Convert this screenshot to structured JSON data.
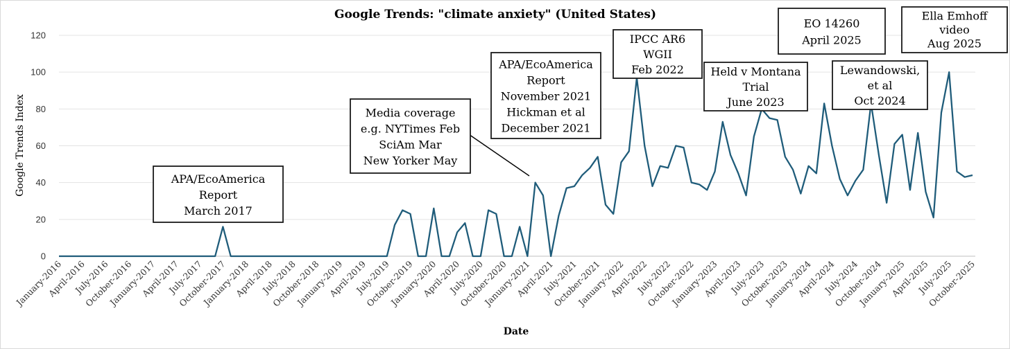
{
  "chart_data": {
    "type": "line",
    "title": "Google Trends: \"climate anxiety\" (United States)",
    "xlabel": "Date",
    "ylabel": "Google Trends Index",
    "ylim": [
      0,
      120
    ],
    "yticks": [
      0,
      20,
      40,
      60,
      80,
      100,
      120
    ],
    "grid": true,
    "line_color": "#1f5c7a",
    "x_tick_labels": [
      "January-2016",
      "April-2016",
      "July-2016",
      "October-2016",
      "January-2017",
      "April-2017",
      "July-2017",
      "October-2017",
      "January-2018",
      "April-2018",
      "July-2018",
      "October-2018",
      "January-2019",
      "April-2019",
      "July-2019",
      "October-2019",
      "January-2020",
      "April-2020",
      "July-2020",
      "October-2020",
      "January-2021",
      "April-2021",
      "July-2021",
      "October-2021",
      "January-2022",
      "April-2022",
      "July-2022",
      "October-2022",
      "January-2023",
      "April-2023",
      "July-2023",
      "October-2023",
      "January-2024",
      "April-2024",
      "July-2024",
      "October-2024",
      "January-2025",
      "April-2025",
      "July-2025",
      "October-2025"
    ],
    "series": [
      {
        "values": [
          0,
          0,
          0,
          0,
          0,
          0,
          0,
          0,
          0,
          0,
          0,
          0,
          0,
          0,
          0,
          0,
          0,
          0,
          0,
          0,
          0,
          16,
          0,
          0,
          0,
          0,
          0,
          0,
          0,
          0,
          0,
          0,
          0,
          0,
          0,
          0,
          0,
          0,
          0,
          0,
          0,
          0,
          0,
          17,
          25,
          23,
          0,
          0,
          26,
          0,
          0,
          13,
          18,
          0,
          0,
          25,
          23,
          0,
          0,
          16,
          0,
          40,
          33,
          0,
          22,
          37,
          38,
          44,
          48,
          54,
          28,
          23,
          51,
          57,
          97,
          60,
          38,
          49,
          48,
          60,
          59,
          40,
          39,
          36,
          46,
          73,
          55,
          45,
          33,
          65,
          80,
          75,
          74,
          54,
          47,
          34,
          49,
          45,
          83,
          60,
          42,
          33,
          41,
          47,
          83,
          55,
          29,
          61,
          66,
          36,
          67,
          35,
          21,
          78,
          100,
          46,
          43,
          44
        ]
      }
    ],
    "annotations": [
      {
        "lines": [
          "APA/EcoAmerica",
          "Report",
          "March 2017"
        ]
      },
      {
        "lines": [
          "Media coverage",
          "e.g. NYTimes Feb",
          "SciAm Mar",
          "New Yorker May"
        ]
      },
      {
        "lines": [
          "APA/EcoAmerica",
          "Report",
          "November 2021",
          "Hickman et al",
          "December 2021"
        ]
      },
      {
        "lines": [
          "IPCC AR6",
          "WGII",
          "Feb 2022"
        ]
      },
      {
        "lines": [
          "Held v Montana",
          "Trial",
          "June 2023"
        ]
      },
      {
        "lines": [
          "EO 14260",
          "April 2025"
        ]
      },
      {
        "lines": [
          "Lewandowski,",
          "et al",
          "Oct 2024"
        ]
      },
      {
        "lines": [
          "Ella Emhoff",
          "video",
          "Aug 2025"
        ]
      }
    ]
  }
}
